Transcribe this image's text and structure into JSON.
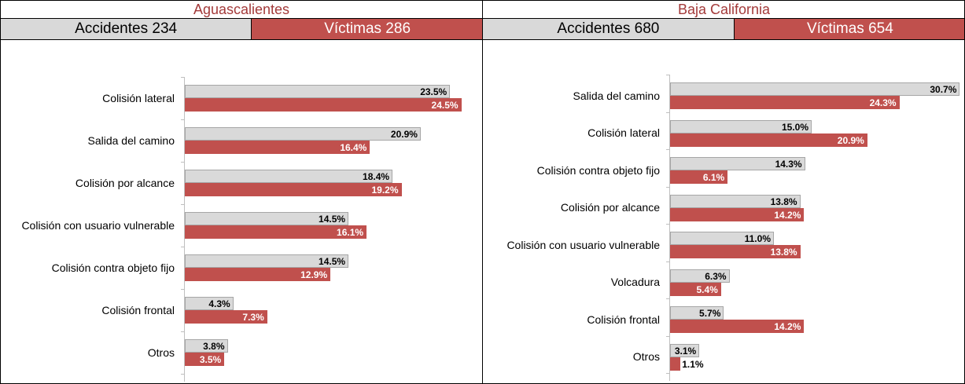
{
  "chart_data": [
    {
      "type": "bar",
      "title": "Aguascalientes",
      "categories": [
        "Colisión lateral",
        "Salida del camino",
        "Colisión por alcance",
        "Colisión con usuario vulnerable",
        "Colisión contra objeto fijo",
        "Colisión frontal",
        "Otros"
      ],
      "series": [
        {
          "name": "Accidentes 234",
          "color": "#d9d9d9",
          "values": [
            23.5,
            20.9,
            18.4,
            14.5,
            14.5,
            4.3,
            3.8
          ],
          "value_labels": [
            "23.5%",
            "20.9%",
            "18.4%",
            "14.5%",
            "14.5%",
            "4.3%",
            "3.8%"
          ]
        },
        {
          "name": "Víctimas 286",
          "color": "#c0504d",
          "values": [
            24.5,
            16.4,
            19.2,
            16.1,
            12.9,
            7.3,
            3.5
          ],
          "value_labels": [
            "24.5%",
            "16.4%",
            "19.2%",
            "16.1%",
            "12.9%",
            "7.3%",
            "3.5%"
          ]
        }
      ]
    },
    {
      "type": "bar",
      "title": "Baja California",
      "categories": [
        "Salida del camino",
        "Colisión lateral",
        "Colisión contra objeto fijo",
        "Colisión por alcance",
        "Colisión con usuario vulnerable",
        "Volcadura",
        "Colisión frontal",
        "Otros"
      ],
      "series": [
        {
          "name": "Accidentes 680",
          "color": "#d9d9d9",
          "values": [
            30.7,
            15.0,
            14.3,
            13.8,
            11.0,
            6.3,
            5.7,
            3.1
          ],
          "value_labels": [
            "30.7%",
            "15.0%",
            "14.3%",
            "13.8%",
            "11.0%",
            "6.3%",
            "5.7%",
            "3.1%"
          ]
        },
        {
          "name": "Víctimas 654",
          "color": "#c0504d",
          "values": [
            24.3,
            20.9,
            6.1,
            14.2,
            13.8,
            5.4,
            14.2,
            1.1
          ],
          "value_labels": [
            "24.3%",
            "20.9%",
            "6.1%",
            "14.2%",
            "13.8%",
            "5.4%",
            "14.2%",
            "1.1%"
          ]
        }
      ]
    }
  ]
}
